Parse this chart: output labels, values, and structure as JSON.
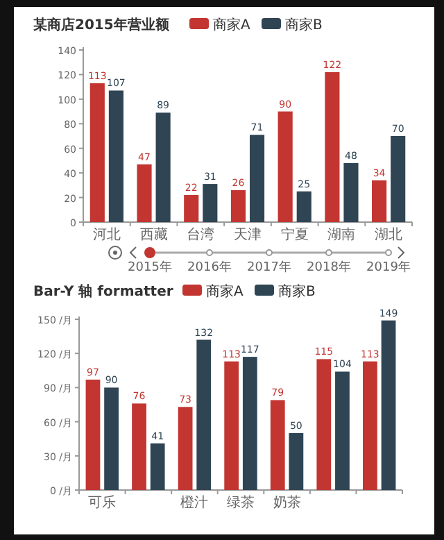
{
  "chart_data": [
    {
      "type": "bar",
      "title": "某商店2015年营业额",
      "categories": [
        "河北",
        "西藏",
        "台湾",
        "天津",
        "宁夏",
        "湖南",
        "湖北"
      ],
      "series": [
        {
          "name": "商家A",
          "color": "#c23531",
          "values": [
            113,
            47,
            22,
            26,
            90,
            122,
            34
          ]
        },
        {
          "name": "商家B",
          "color": "#2f4554",
          "values": [
            107,
            89,
            31,
            71,
            25,
            48,
            70
          ]
        }
      ],
      "ylim": [
        0,
        140
      ],
      "yticks": [
        0,
        20,
        40,
        60,
        80,
        100,
        120,
        140
      ],
      "data_labels": true,
      "legend": "top",
      "grid": false,
      "annotations": [
        "2015年",
        "2016年",
        "2017年",
        "2018年",
        "2019年"
      ]
    },
    {
      "type": "bar",
      "title": "Bar-Y 轴 formatter",
      "categories": [
        "可乐",
        null,
        "橙汁",
        "绿茶",
        "奶茶",
        null,
        null
      ],
      "series": [
        {
          "name": "商家A",
          "color": "#c23531",
          "values": [
            97,
            76,
            73,
            113,
            79,
            115,
            113
          ]
        },
        {
          "name": "商家B",
          "color": "#2f4554",
          "values": [
            90,
            41,
            132,
            117,
            50,
            104,
            149
          ]
        }
      ],
      "ylim": [
        0,
        150
      ],
      "yticks": [
        {
          "value": 0,
          "label": "0 /月"
        },
        {
          "value": 30,
          "label": "30 /月"
        },
        {
          "value": 60,
          "label": "60 /月"
        },
        {
          "value": 90,
          "label": "90 /月"
        },
        {
          "value": 120,
          "label": "120 /月"
        },
        {
          "value": 150,
          "label": "150 /月"
        }
      ],
      "data_labels": true,
      "legend": "top",
      "grid": false
    }
  ]
}
